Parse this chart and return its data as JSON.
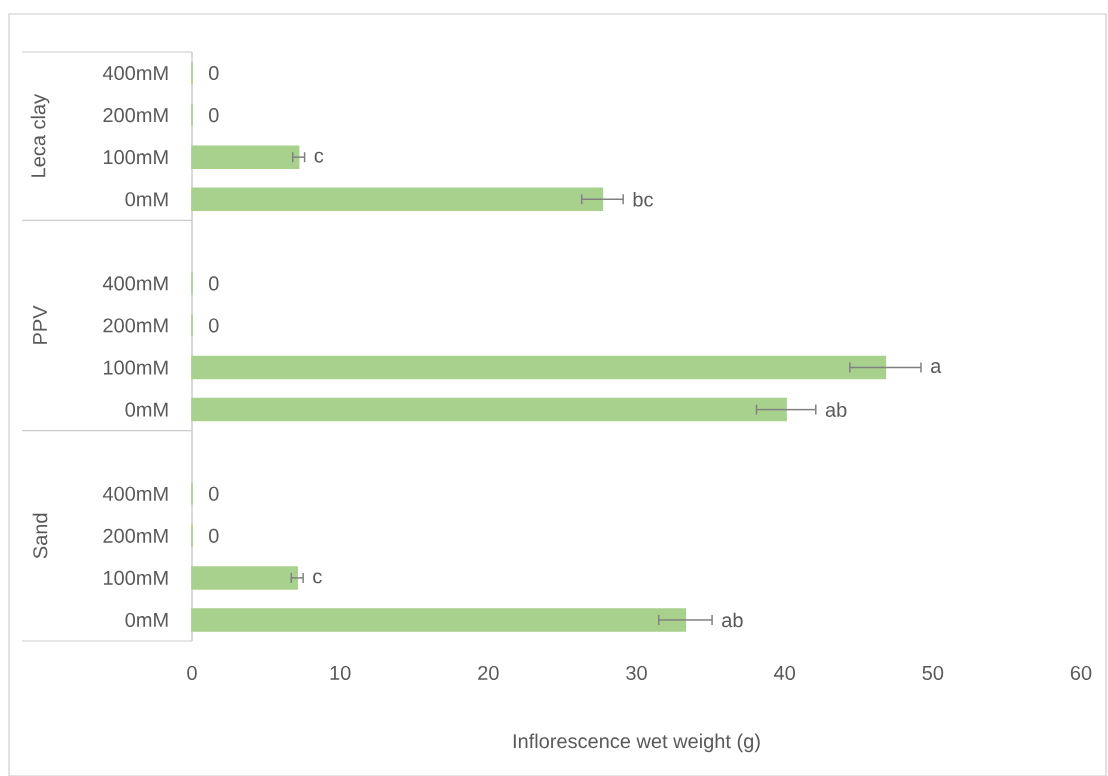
{
  "chart_data": {
    "type": "bar",
    "orientation": "horizontal",
    "xlabel": "Inflorescence wet weight (g)",
    "categories": [
      "400mM",
      "200mM",
      "100mM",
      "0mM",
      "400mM",
      "200mM",
      "100mM",
      "0mM",
      "400mM",
      "200mM",
      "100mM",
      "0mM"
    ],
    "annotations": [
      "Leca clay",
      "PPV",
      "Sand"
    ],
    "values": [
      0,
      0,
      7.2,
      27.7,
      0,
      0,
      46.8,
      40.1,
      0,
      0,
      7.1,
      33.3
    ],
    "errors": [
      null,
      null,
      0.4,
      1.4,
      null,
      null,
      2.4,
      2.0,
      null,
      null,
      0.4,
      1.8
    ],
    "value_labels": [
      "0",
      "0",
      "c",
      "bc",
      "0",
      "0",
      "a",
      "ab",
      "0",
      "0",
      "c",
      "ab"
    ],
    "color": "#a9d18e",
    "xlim": [
      0,
      60
    ],
    "xticks": [
      0,
      10,
      20,
      30,
      40,
      50,
      60
    ]
  }
}
